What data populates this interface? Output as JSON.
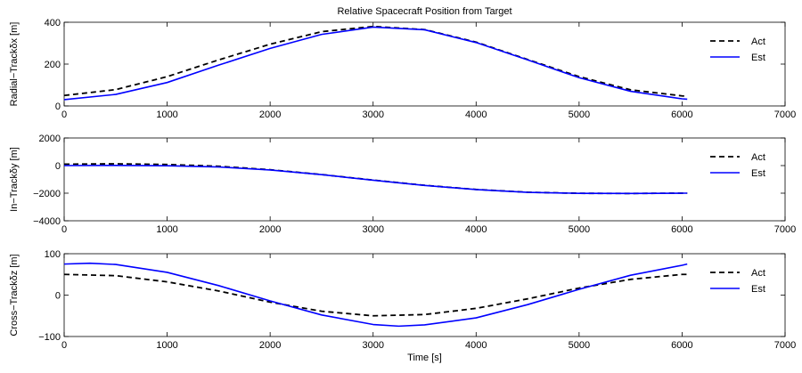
{
  "chart_data": [
    {
      "type": "line",
      "title": "Relative Spacecraft Position from Target",
      "ylabel": "Radial−Trackδx [m]",
      "xlabel": "",
      "xlim": [
        0,
        7000
      ],
      "ylim": [
        0,
        400
      ],
      "xticks": [
        "0",
        "1000",
        "2000",
        "3000",
        "4000",
        "5000",
        "6000",
        "7000"
      ],
      "yticks": [
        "0",
        "200",
        "400"
      ],
      "legend": "right",
      "series": [
        {
          "name": "Act",
          "color": "#000000",
          "dash": "dashed",
          "x": [
            0,
            500,
            1000,
            1500,
            2000,
            2500,
            3000,
            3500,
            4000,
            4500,
            5000,
            5500,
            6000,
            6050
          ],
          "y": [
            50,
            78,
            140,
            220,
            295,
            355,
            380,
            365,
            305,
            222,
            140,
            77,
            48,
            46
          ]
        },
        {
          "name": "Est",
          "color": "#0000ff",
          "dash": "solid",
          "x": [
            0,
            500,
            1000,
            1500,
            2000,
            2500,
            3000,
            3500,
            4000,
            4500,
            5000,
            5500,
            6000,
            6050
          ],
          "y": [
            30,
            55,
            112,
            195,
            275,
            342,
            377,
            364,
            303,
            220,
            135,
            70,
            34,
            32
          ]
        }
      ]
    },
    {
      "type": "line",
      "title": "",
      "ylabel": "In−Trackδy [m]",
      "xlabel": "",
      "xlim": [
        0,
        7000
      ],
      "ylim": [
        -4000,
        2000
      ],
      "xticks": [
        "0",
        "1000",
        "2000",
        "3000",
        "4000",
        "5000",
        "6000",
        "7000"
      ],
      "yticks": [
        "2000",
        "0",
        "−2000",
        "−4000"
      ],
      "legend": "right",
      "series": [
        {
          "name": "Act",
          "color": "#000000",
          "dash": "dashed",
          "x": [
            0,
            500,
            1000,
            1500,
            2000,
            2500,
            3000,
            3500,
            4000,
            4500,
            5000,
            5500,
            6000,
            6050
          ],
          "y": [
            100,
            130,
            80,
            -50,
            -300,
            -650,
            -1050,
            -1430,
            -1730,
            -1930,
            -2010,
            -2020,
            -2000,
            -2000
          ]
        },
        {
          "name": "Est",
          "color": "#0000ff",
          "dash": "solid",
          "x": [
            0,
            500,
            1000,
            1500,
            2000,
            2500,
            3000,
            3500,
            4000,
            4500,
            5000,
            5500,
            6000,
            6050
          ],
          "y": [
            0,
            10,
            -10,
            -100,
            -320,
            -660,
            -1060,
            -1440,
            -1740,
            -1940,
            -2010,
            -2020,
            -2000,
            -2000
          ]
        }
      ]
    },
    {
      "type": "line",
      "title": "",
      "ylabel": "Cross−Trackδz [m]",
      "xlabel": "Time [s]",
      "xlim": [
        0,
        7000
      ],
      "ylim": [
        -100,
        100
      ],
      "xticks": [
        "0",
        "1000",
        "2000",
        "3000",
        "4000",
        "5000",
        "6000",
        "7000"
      ],
      "yticks": [
        "100",
        "0",
        "−100"
      ],
      "legend": "right",
      "series": [
        {
          "name": "Act",
          "color": "#000000",
          "dash": "dashed",
          "x": [
            0,
            500,
            1000,
            1500,
            2000,
            2500,
            3000,
            3500,
            4000,
            4500,
            5000,
            5500,
            6000,
            6050
          ],
          "y": [
            50,
            47,
            32,
            10,
            -17,
            -39,
            -50,
            -47,
            -32,
            -9,
            17,
            38,
            50,
            50
          ]
        },
        {
          "name": "Est",
          "color": "#0000ff",
          "dash": "solid",
          "x": [
            0,
            250,
            500,
            1000,
            1500,
            2000,
            2500,
            3000,
            3250,
            3500,
            4000,
            4500,
            5000,
            5500,
            6000,
            6050
          ],
          "y": [
            75,
            77,
            74,
            55,
            23,
            -14,
            -48,
            -71,
            -75,
            -72,
            -55,
            -23,
            14,
            48,
            72,
            75
          ]
        }
      ]
    }
  ]
}
